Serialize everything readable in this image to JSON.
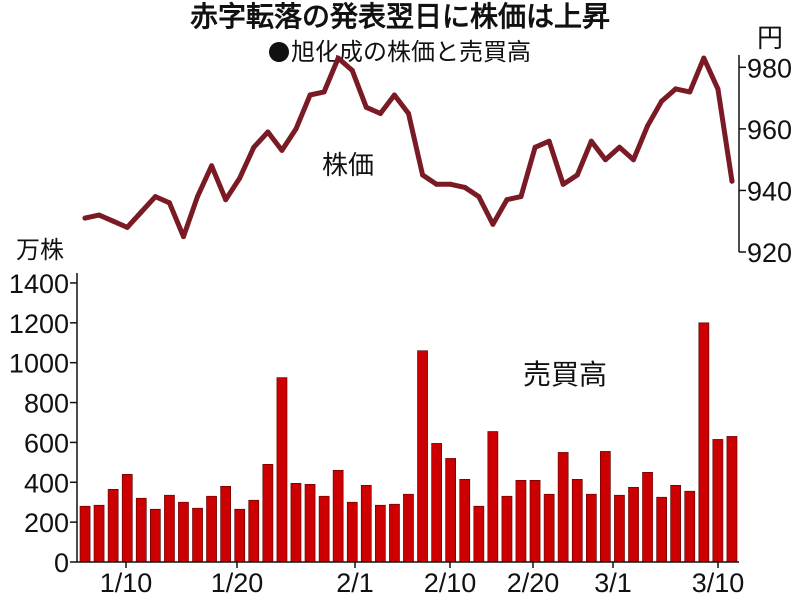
{
  "title": "赤字転落の発表翌日に株価は上昇",
  "subtitle": "旭化成の株価と売買高",
  "chart_data": [
    {
      "type": "line",
      "name": "株価",
      "unit": "円",
      "y_ticks": [
        920,
        940,
        960,
        980
      ],
      "ylim": [
        920,
        984
      ],
      "color": "#7a1a24",
      "values": [
        931,
        932,
        930,
        928,
        933,
        938,
        936,
        925,
        938,
        948,
        937,
        944,
        954,
        959,
        953,
        960,
        971,
        972,
        983,
        979,
        967,
        965,
        971,
        965,
        945,
        942,
        942,
        941,
        938,
        929,
        937,
        938,
        954,
        956,
        942,
        945,
        956,
        950,
        954,
        950,
        961,
        969,
        973,
        972,
        983,
        973,
        943
      ]
    },
    {
      "type": "bar",
      "name": "売買高",
      "unit": "万株",
      "y_ticks": [
        0,
        200,
        400,
        600,
        800,
        1000,
        1200,
        1400
      ],
      "ylim": [
        0,
        1450
      ],
      "color": "#cc0000",
      "x_tick_labels": [
        "1/10",
        "1/20",
        "2/1",
        "2/10",
        "2/20",
        "3/1",
        "3/10"
      ],
      "values": [
        280,
        285,
        365,
        440,
        320,
        265,
        335,
        300,
        270,
        330,
        380,
        265,
        310,
        490,
        925,
        395,
        390,
        330,
        460,
        300,
        385,
        285,
        290,
        340,
        1060,
        595,
        520,
        415,
        280,
        655,
        330,
        410,
        410,
        340,
        550,
        415,
        340,
        555,
        335,
        375,
        450,
        325,
        385,
        355,
        1200,
        615,
        630
      ]
    }
  ],
  "labels": {
    "price": "株価",
    "volume": "売買高",
    "unit_price": "円",
    "unit_volume": "万株"
  }
}
